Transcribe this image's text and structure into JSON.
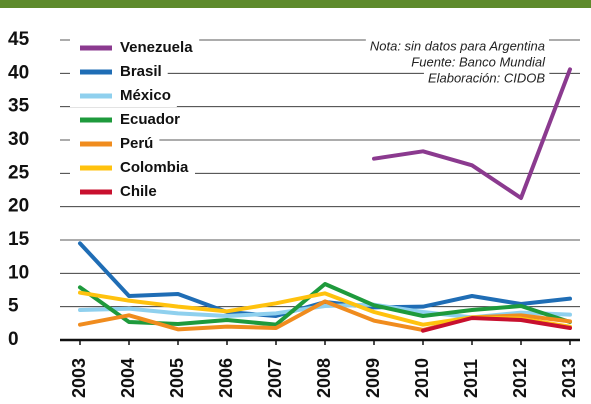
{
  "chart_data": {
    "type": "line",
    "annotations": [
      "Nota: sin datos para Argentina",
      "Fuente: Banco Mundial",
      "Elaboración: CIDOB"
    ],
    "categories": [
      "2003",
      "2004",
      "2005",
      "2006",
      "2007",
      "2008",
      "2009",
      "2010",
      "2011",
      "2012",
      "2013"
    ],
    "series": [
      {
        "name": "Venezuela",
        "color": "#8b3a8f",
        "values": [
          null,
          null,
          null,
          null,
          null,
          null,
          27.2,
          28.3,
          26.2,
          21.3,
          40.6
        ]
      },
      {
        "name": "Brasil",
        "color": "#1f6db5",
        "values": [
          14.5,
          6.6,
          6.9,
          4.2,
          3.6,
          5.7,
          4.9,
          5.0,
          6.6,
          5.4,
          6.2
        ]
      },
      {
        "name": "México",
        "color": "#8fd0ee",
        "values": [
          4.5,
          4.7,
          4.0,
          3.6,
          4.0,
          5.1,
          5.3,
          4.2,
          3.4,
          4.1,
          3.8
        ]
      },
      {
        "name": "Ecuador",
        "color": "#1e9a3c",
        "values": [
          7.9,
          2.7,
          2.4,
          3.0,
          2.3,
          8.4,
          5.2,
          3.6,
          4.5,
          5.1,
          2.7
        ]
      },
      {
        "name": "Perú",
        "color": "#f08c1e",
        "values": [
          2.3,
          3.7,
          1.6,
          2.0,
          1.8,
          5.8,
          2.9,
          1.5,
          3.4,
          3.7,
          2.8
        ]
      },
      {
        "name": "Colombia",
        "color": "#ffc20e",
        "values": [
          7.1,
          5.9,
          5.0,
          4.3,
          5.5,
          7.0,
          4.2,
          2.3,
          3.4,
          3.2,
          2.0
        ]
      },
      {
        "name": "Chile",
        "color": "#c8102e",
        "values": [
          null,
          null,
          null,
          null,
          null,
          null,
          null,
          1.4,
          3.3,
          3.0,
          1.8
        ]
      }
    ],
    "ylim": [
      0,
      45
    ],
    "yticks": [
      0,
      5,
      10,
      15,
      20,
      25,
      30,
      35,
      40,
      45
    ],
    "grid": true
  }
}
